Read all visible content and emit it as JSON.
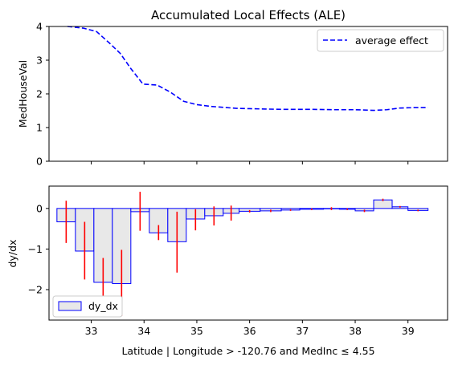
{
  "chart_data": [
    {
      "type": "line",
      "title": "Accumulated Local Effects (ALE)",
      "ylabel": "MedHouseVal",
      "xlim": [
        32.2,
        39.75
      ],
      "ylim": [
        0,
        4
      ],
      "yticks": [
        0,
        1,
        2,
        3,
        4
      ],
      "xticks": [
        33,
        34,
        35,
        36,
        37,
        38,
        39
      ],
      "legend": {
        "placement": "top-right",
        "entries": [
          "average effect"
        ]
      },
      "series": [
        {
          "name": "average effect",
          "color": "#0000ff",
          "style": "dashed",
          "x": [
            32.55,
            32.85,
            33.1,
            33.35,
            33.55,
            33.75,
            33.98,
            34.25,
            34.5,
            34.75,
            35.0,
            35.25,
            35.5,
            35.75,
            36.0,
            36.3,
            36.6,
            36.9,
            37.2,
            37.6,
            38.0,
            38.35,
            38.6,
            38.85,
            39.1,
            39.38
          ],
          "y": [
            4.0,
            3.95,
            3.85,
            3.5,
            3.2,
            2.75,
            2.29,
            2.26,
            2.05,
            1.78,
            1.68,
            1.63,
            1.6,
            1.57,
            1.56,
            1.55,
            1.54,
            1.54,
            1.54,
            1.53,
            1.53,
            1.51,
            1.53,
            1.58,
            1.59,
            1.59
          ]
        }
      ]
    },
    {
      "type": "bar",
      "ylabel": "dy/dx",
      "xlabel": "Latitude | Longitude > -120.76 and MedInc ≤ 4.55",
      "xlim": [
        32.2,
        39.75
      ],
      "ylim": [
        -2.75,
        0.55
      ],
      "yticks": [
        0,
        -1,
        -2
      ],
      "xticks": [
        33,
        34,
        35,
        36,
        37,
        38,
        39
      ],
      "legend": {
        "placement": "bottom-left",
        "entries": [
          "dy_dx"
        ]
      },
      "bar_fill": "#e8e8e8",
      "bar_edge": "#0000ff",
      "error_color": "#ff0000",
      "bins": [
        {
          "x0": 32.35,
          "x1": 32.7,
          "value": -0.33,
          "err_low": -0.85,
          "err_high": 0.19
        },
        {
          "x0": 32.7,
          "x1": 33.05,
          "value": -1.05,
          "err_low": -1.75,
          "err_high": -0.33
        },
        {
          "x0": 33.05,
          "x1": 33.4,
          "value": -1.82,
          "err_low": -2.2,
          "err_high": -1.22
        },
        {
          "x0": 33.4,
          "x1": 33.75,
          "value": -1.85,
          "err_low": -2.65,
          "err_high": -1.02
        },
        {
          "x0": 33.75,
          "x1": 34.1,
          "value": -0.08,
          "err_low": -0.55,
          "err_high": 0.41
        },
        {
          "x0": 34.1,
          "x1": 34.45,
          "value": -0.6,
          "err_low": -0.78,
          "err_high": -0.41
        },
        {
          "x0": 34.45,
          "x1": 34.8,
          "value": -0.82,
          "err_low": -1.58,
          "err_high": -0.08
        },
        {
          "x0": 34.8,
          "x1": 35.15,
          "value": -0.26,
          "err_low": -0.54,
          "err_high": -0.02
        },
        {
          "x0": 35.15,
          "x1": 35.5,
          "value": -0.18,
          "err_low": -0.42,
          "err_high": 0.05
        },
        {
          "x0": 35.5,
          "x1": 35.8,
          "value": -0.12,
          "err_low": -0.3,
          "err_high": 0.07
        },
        {
          "x0": 35.8,
          "x1": 36.2,
          "value": -0.07,
          "err_low": -0.1,
          "err_high": -0.04
        },
        {
          "x0": 36.2,
          "x1": 36.6,
          "value": -0.06,
          "err_low": -0.09,
          "err_high": -0.03
        },
        {
          "x0": 36.6,
          "x1": 36.95,
          "value": -0.04,
          "err_low": -0.06,
          "err_high": -0.02
        },
        {
          "x0": 36.95,
          "x1": 37.4,
          "value": -0.02,
          "err_low": -0.04,
          "err_high": 0.0
        },
        {
          "x0": 37.4,
          "x1": 37.7,
          "value": -0.01,
          "err_low": -0.04,
          "err_high": 0.03
        },
        {
          "x0": 37.7,
          "x1": 38.0,
          "value": -0.02,
          "err_low": -0.04,
          "err_high": 0.0
        },
        {
          "x0": 38.0,
          "x1": 38.35,
          "value": -0.06,
          "err_low": -0.09,
          "err_high": -0.03
        },
        {
          "x0": 38.35,
          "x1": 38.7,
          "value": 0.21,
          "err_low": 0.18,
          "err_high": 0.24
        },
        {
          "x0": 38.7,
          "x1": 39.0,
          "value": 0.04,
          "err_low": 0.02,
          "err_high": 0.06
        },
        {
          "x0": 39.0,
          "x1": 39.38,
          "value": -0.05,
          "err_low": -0.07,
          "err_high": -0.03
        }
      ]
    }
  ]
}
